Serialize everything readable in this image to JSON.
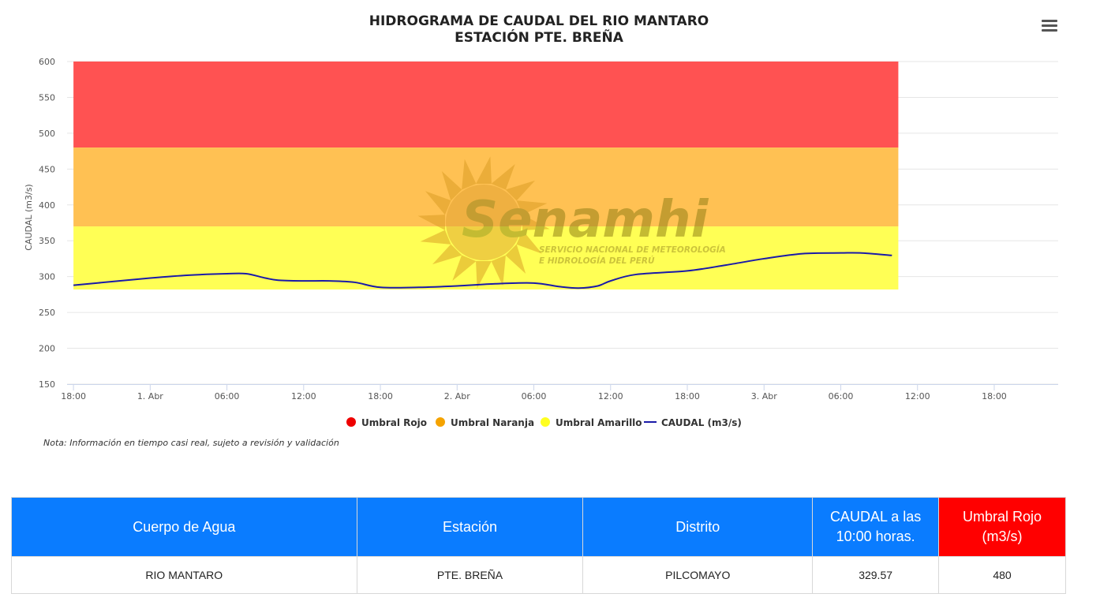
{
  "chart_data": {
    "type": "line",
    "title": "HIDROGRAMA DE CAUDAL DEL RIO MANTARO",
    "subtitle": "ESTACIÓN PTE. BREÑA",
    "ylabel": "CAUDAL (m3/s)",
    "ylim": [
      150,
      600
    ],
    "yticks": [
      150,
      200,
      250,
      300,
      350,
      400,
      450,
      500,
      550,
      600
    ],
    "x_tick_labels": [
      "18:00",
      "1. Abr",
      "06:00",
      "12:00",
      "18:00",
      "2. Abr",
      "06:00",
      "12:00",
      "18:00",
      "3. Abr",
      "06:00",
      "12:00",
      "18:00"
    ],
    "x_tick_hours": [
      0,
      6,
      12,
      18,
      24,
      30,
      36,
      42,
      48,
      54,
      60,
      66,
      72
    ],
    "x_range_hours": [
      -0.5,
      77
    ],
    "bands": [
      {
        "name": "Umbral Rojo",
        "from": 480,
        "to": 600,
        "color": "#ff5252"
      },
      {
        "name": "Umbral Naranja",
        "from": 370,
        "to": 480,
        "color": "#ffc153"
      },
      {
        "name": "Umbral Amarillo",
        "from": 282,
        "to": 370,
        "color": "#ffff55"
      }
    ],
    "band_x_range_hours": [
      0,
      64.5
    ],
    "series": [
      {
        "name": "CAUDAL (m3/s)",
        "color": "#1a1aa8",
        "x": [
          0,
          3,
          6,
          9,
          12,
          13.5,
          15,
          16,
          18,
          20,
          22,
          24,
          27,
          30,
          33,
          36,
          38,
          39.5,
          41,
          42,
          44,
          48,
          51,
          54,
          57,
          60,
          61.5,
          64
        ],
        "values": [
          288,
          293,
          298,
          302,
          304,
          304,
          298,
          295,
          294,
          294,
          292,
          285,
          285,
          287,
          290,
          291,
          286,
          284,
          287,
          294,
          303,
          308,
          316,
          325,
          332,
          333,
          333,
          329.57
        ]
      }
    ],
    "legend": [
      {
        "label": "Umbral Rojo",
        "color": "#ee0000",
        "shape": "circle"
      },
      {
        "label": "Umbral Naranja",
        "color": "#f5a300",
        "shape": "circle"
      },
      {
        "label": "Umbral Amarillo",
        "color": "#ffff20",
        "shape": "circle"
      },
      {
        "label": "CAUDAL (m3/s)",
        "color": "#1a1aa8",
        "shape": "line"
      }
    ],
    "legend_position": "bottom-center",
    "grid": true
  },
  "watermark": {
    "brand": "Senamhi",
    "line1": "SERVICIO NACIONAL DE METEOROLOGÍA",
    "line2": "E HIDROLOGÍA DEL PERÚ"
  },
  "note": "Nota: Información en tiempo casi real, sujeto a revisión y validación",
  "menu_icon": "hamburger-menu-icon",
  "table": {
    "headers": [
      "Cuerpo de Agua",
      "Estación",
      "Distrito",
      "CAUDAL a las 10:00 horas.",
      "Umbral Rojo (m3/s)"
    ],
    "header_colors": {
      "default": "#0a7cff",
      "umbral": "#ff0000"
    },
    "row": [
      "RIO MANTARO",
      "PTE. BREÑA",
      "PILCOMAYO",
      "329.57",
      "480"
    ]
  }
}
